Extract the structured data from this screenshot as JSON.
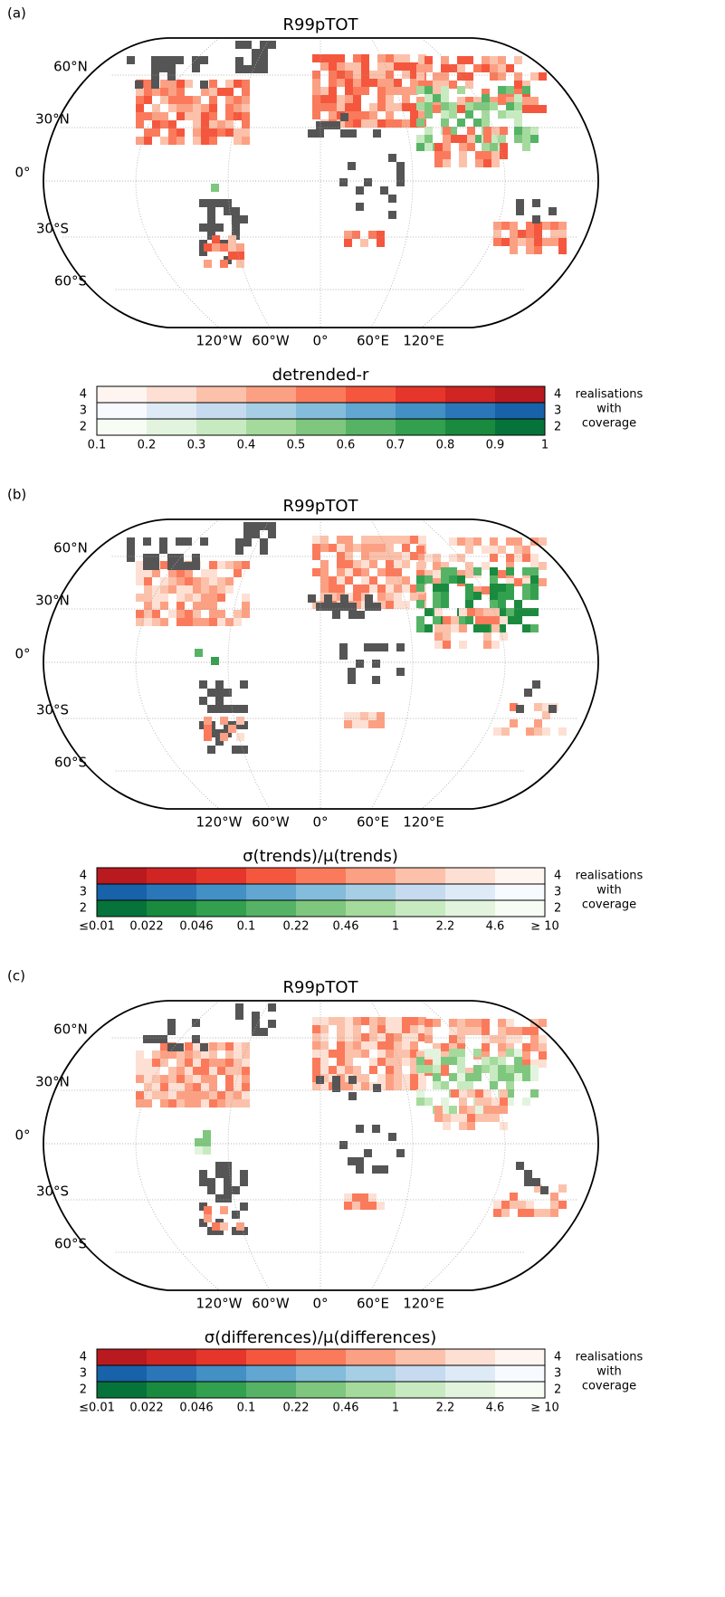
{
  "panels": [
    {
      "label": "(a)",
      "title": "R99pTOT",
      "lat_labels": [
        "60°N",
        "30°N",
        "0°",
        "30°S",
        "60°S"
      ],
      "lon_labels": [
        "120°W",
        "60°W",
        "0°",
        "60°E",
        "120°E"
      ],
      "colorbar": {
        "title": "detrended-r",
        "rows": [
          {
            "left": "4",
            "right": "4",
            "colors": [
              "#fff5f0",
              "#fde0d3",
              "#fcc1aa",
              "#fca083",
              "#fb7a5b",
              "#f4573d",
              "#e6352a",
              "#d02522",
              "#b91a1f"
            ]
          },
          {
            "left": "3",
            "right": "3",
            "colors": [
              "#f7fbff",
              "#deebf7",
              "#c6dbef",
              "#a6cee4",
              "#84bcdb",
              "#62a6d2",
              "#4290c4",
              "#2a76b8",
              "#1762a8"
            ]
          },
          {
            "left": "2",
            "right": "2",
            "colors": [
              "#f7fcf5",
              "#e3f4de",
              "#c8eac1",
              "#a5da9d",
              "#7fc77e",
              "#56b366",
              "#33a04f",
              "#1a8a3e",
              "#06743a"
            ]
          }
        ],
        "ticks": [
          0.1,
          0.2,
          0.3,
          0.4,
          0.5,
          0.6,
          0.7,
          0.8,
          0.9,
          1
        ],
        "side_label": [
          "realisations",
          "with",
          "coverage"
        ]
      }
    },
    {
      "label": "(b)",
      "title": "R99pTOT",
      "lat_labels": [
        "60°N",
        "30°N",
        "0°",
        "30°S",
        "60°S"
      ],
      "lon_labels": [
        "120°W",
        "60°W",
        "0°",
        "60°E",
        "120°E"
      ],
      "colorbar": {
        "title": "σ(trends)/μ(trends)",
        "rows": [
          {
            "left": "4",
            "right": "4",
            "colors": [
              "#b91a1f",
              "#d02522",
              "#e6352a",
              "#f4573d",
              "#fb7a5b",
              "#fca083",
              "#fcc1aa",
              "#fde0d3",
              "#fff5f0"
            ]
          },
          {
            "left": "3",
            "right": "3",
            "colors": [
              "#1762a8",
              "#2a76b8",
              "#4290c4",
              "#62a6d2",
              "#84bcdb",
              "#a6cee4",
              "#c6dbef",
              "#deebf7",
              "#f7fbff"
            ]
          },
          {
            "left": "2",
            "right": "2",
            "colors": [
              "#06743a",
              "#1a8a3e",
              "#33a04f",
              "#56b366",
              "#7fc77e",
              "#a5da9d",
              "#c8eac1",
              "#e3f4de",
              "#f7fcf5"
            ]
          }
        ],
        "ticks": [
          "≤0.01",
          "0.022",
          "0.046",
          "0.1",
          "0.22",
          "0.46",
          "1",
          "2.2",
          "4.6",
          "≥ 10"
        ],
        "side_label": [
          "realisations",
          "with",
          "coverage"
        ]
      }
    },
    {
      "label": "(c)",
      "title": "R99pTOT",
      "lat_labels": [
        "60°N",
        "30°N",
        "0°",
        "30°S",
        "60°S"
      ],
      "lon_labels": [
        "120°W",
        "60°W",
        "0°",
        "60°E",
        "120°E"
      ],
      "colorbar": {
        "title": "σ(differences)/μ(differences)",
        "rows": [
          {
            "left": "4",
            "right": "4",
            "colors": [
              "#b91a1f",
              "#d02522",
              "#e6352a",
              "#f4573d",
              "#fb7a5b",
              "#fca083",
              "#fcc1aa",
              "#fde0d3",
              "#fff5f0"
            ]
          },
          {
            "left": "3",
            "right": "3",
            "colors": [
              "#1762a8",
              "#2a76b8",
              "#4290c4",
              "#62a6d2",
              "#84bcdb",
              "#a6cee4",
              "#c6dbef",
              "#deebf7",
              "#f7fbff"
            ]
          },
          {
            "left": "2",
            "right": "2",
            "colors": [
              "#06743a",
              "#1a8a3e",
              "#33a04f",
              "#56b366",
              "#7fc77e",
              "#a5da9d",
              "#c8eac1",
              "#e3f4de",
              "#f7fcf5"
            ]
          }
        ],
        "ticks": [
          "≤0.01",
          "0.022",
          "0.046",
          "0.1",
          "0.22",
          "0.46",
          "1",
          "2.2",
          "4.6",
          "≥ 10"
        ],
        "side_label": [
          "realisations",
          "with",
          "coverage"
        ]
      }
    }
  ]
}
